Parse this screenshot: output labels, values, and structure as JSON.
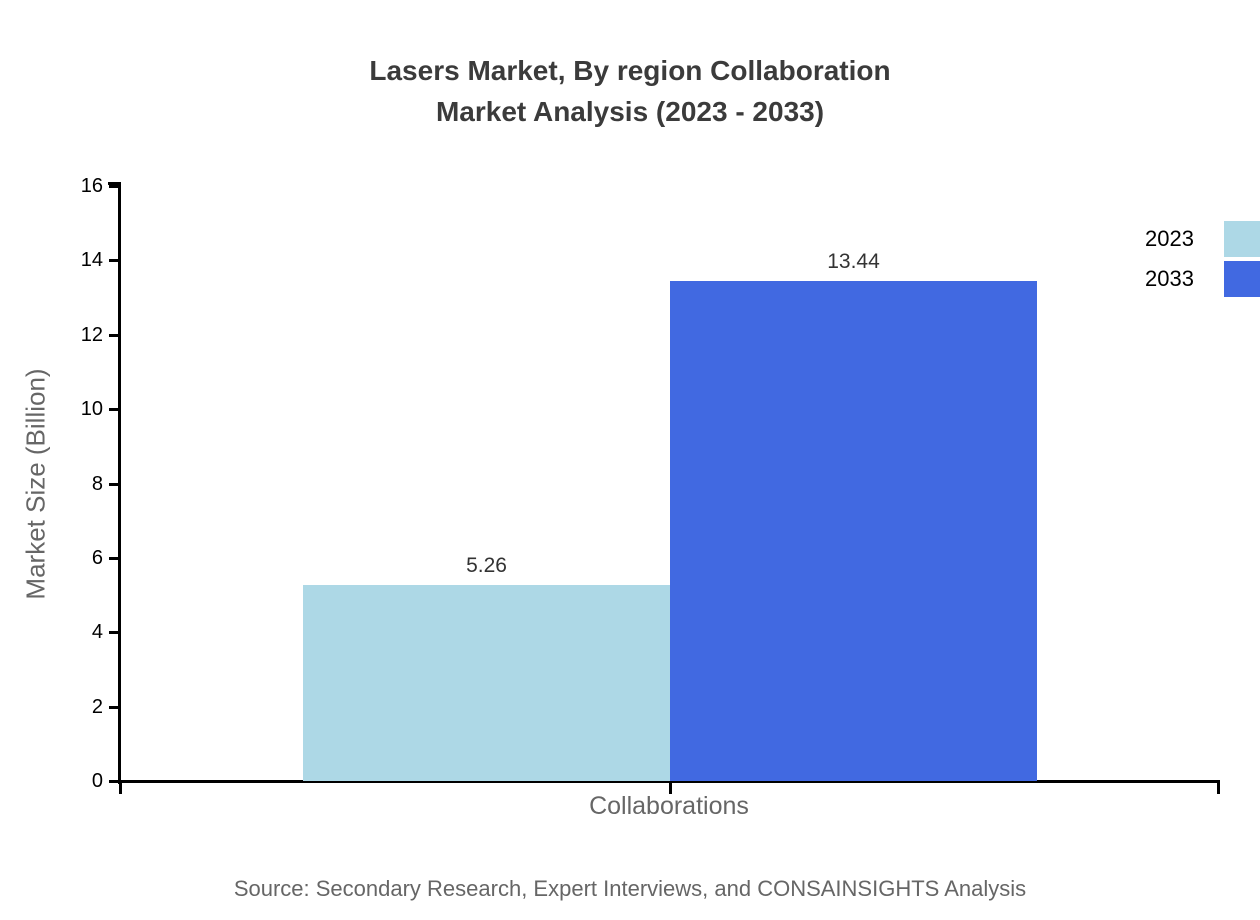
{
  "title": {
    "line1": "Lasers Market, By region Collaboration",
    "line2": "Market Analysis (2023 - 2033)"
  },
  "source": "Source: Secondary Research, Expert Interviews, and CONSAINSIGHTS Analysis",
  "colors": {
    "series_2023": "#ADD8E6",
    "series_2033": "#4169E1",
    "axis": "#000000",
    "muted_text": "#666666",
    "title_text": "#3b3b3b"
  },
  "chart_data": {
    "type": "bar",
    "categories": [
      "Collaborations"
    ],
    "series": [
      {
        "name": "2023",
        "values": [
          5.26
        ],
        "color": "#ADD8E6"
      },
      {
        "name": "2033",
        "values": [
          13.44
        ],
        "color": "#4169E1"
      }
    ],
    "value_labels": [
      "5.26",
      "13.44"
    ],
    "xlabel": "Collaborations",
    "ylabel": "Market Size (Billion)",
    "ylim": [
      0,
      16
    ],
    "yticks": [
      0,
      2,
      4,
      6,
      8,
      10,
      12,
      14,
      16
    ],
    "grid": false,
    "legend_position": "top-right",
    "legend_labels": [
      "2023",
      "2033"
    ]
  }
}
